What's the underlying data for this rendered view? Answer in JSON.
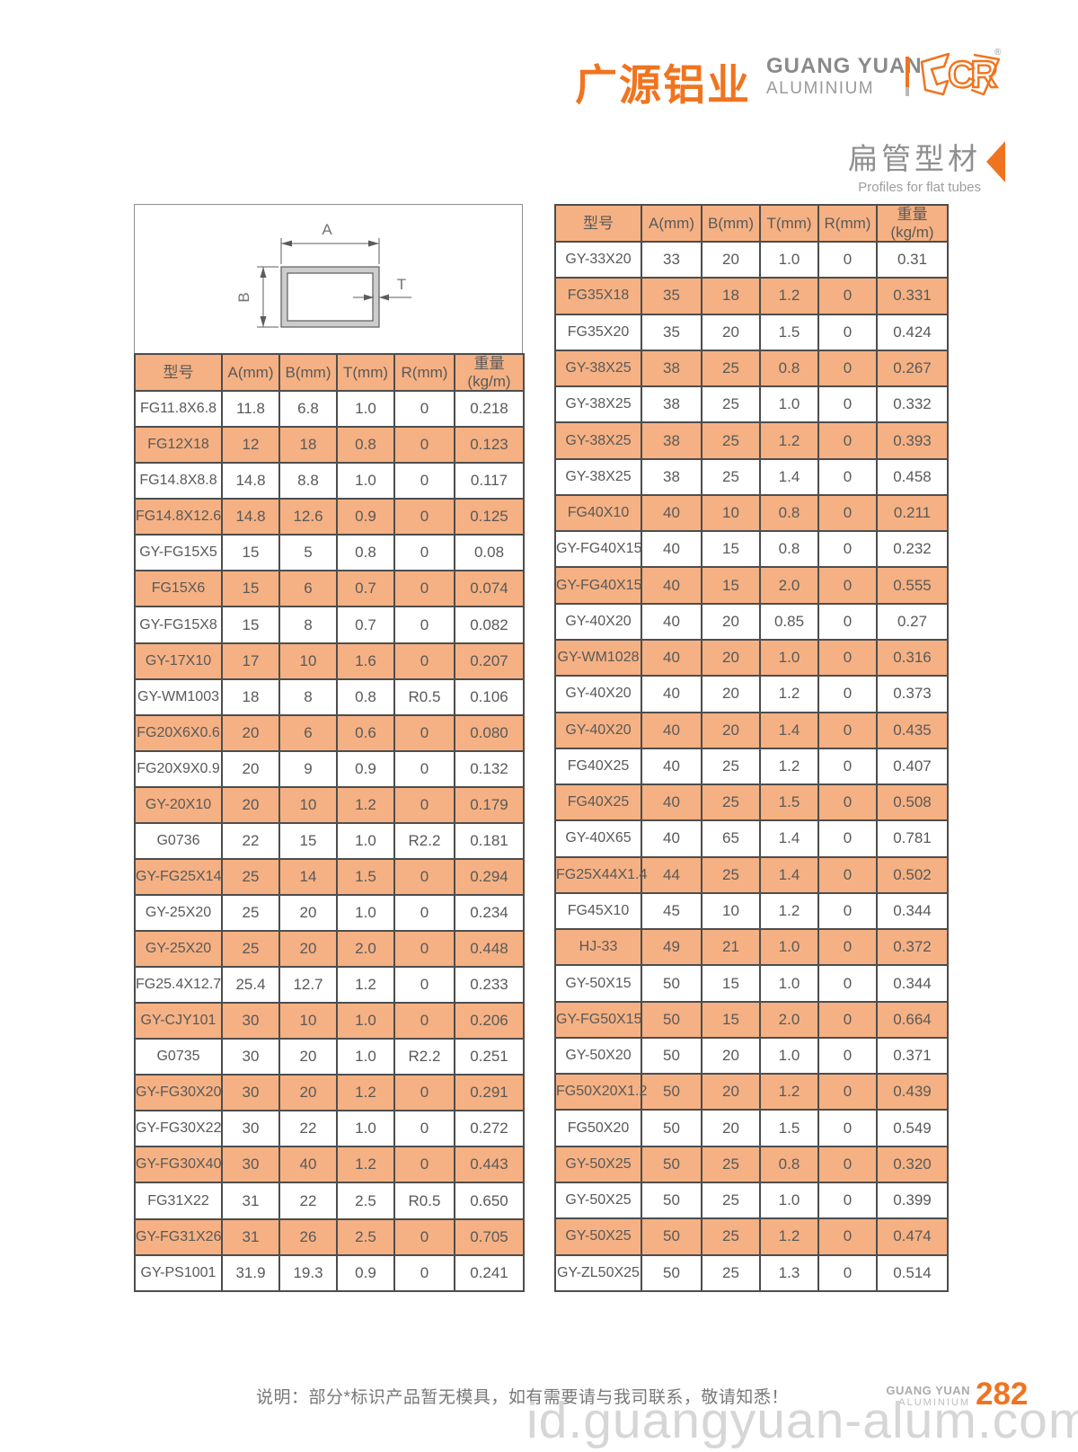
{
  "brand": {
    "logo_cn": "广源铝业",
    "logo_en_line1": "GUANG YUAN",
    "logo_en_line2": "ALUMINIUM",
    "logo_mark_letters": "CR",
    "registered_mark": "®"
  },
  "section": {
    "title_cn": "扁管型材",
    "title_en": "Profiles for flat tubes"
  },
  "diagram": {
    "label_a": "A",
    "label_b": "B",
    "label_t": "T"
  },
  "columns": [
    "型号",
    "A(mm)",
    "B(mm)",
    "T(mm)",
    "R(mm)",
    "重量\n(kg/m)"
  ],
  "tables": {
    "left": {
      "rows": [
        [
          "FG11.8X6.8",
          "11.8",
          "6.8",
          "1.0",
          "0",
          "0.218"
        ],
        [
          "FG12X18",
          "12",
          "18",
          "0.8",
          "0",
          "0.123"
        ],
        [
          "FG14.8X8.8",
          "14.8",
          "8.8",
          "1.0",
          "0",
          "0.117"
        ],
        [
          "FG14.8X12.6",
          "14.8",
          "12.6",
          "0.9",
          "0",
          "0.125"
        ],
        [
          "GY-FG15X5",
          "15",
          "5",
          "0.8",
          "0",
          "0.08"
        ],
        [
          "FG15X6",
          "15",
          "6",
          "0.7",
          "0",
          "0.074"
        ],
        [
          "GY-FG15X8",
          "15",
          "8",
          "0.7",
          "0",
          "0.082"
        ],
        [
          "GY-17X10",
          "17",
          "10",
          "1.6",
          "0",
          "0.207"
        ],
        [
          "GY-WM1003",
          "18",
          "8",
          "0.8",
          "R0.5",
          "0.106"
        ],
        [
          "FG20X6X0.6",
          "20",
          "6",
          "0.6",
          "0",
          "0.080"
        ],
        [
          "FG20X9X0.9",
          "20",
          "9",
          "0.9",
          "0",
          "0.132"
        ],
        [
          "GY-20X10",
          "20",
          "10",
          "1.2",
          "0",
          "0.179"
        ],
        [
          "G0736",
          "22",
          "15",
          "1.0",
          "R2.2",
          "0.181"
        ],
        [
          "GY-FG25X14",
          "25",
          "14",
          "1.5",
          "0",
          "0.294"
        ],
        [
          "GY-25X20",
          "25",
          "20",
          "1.0",
          "0",
          "0.234"
        ],
        [
          "GY-25X20",
          "25",
          "20",
          "2.0",
          "0",
          "0.448"
        ],
        [
          "FG25.4X12.7",
          "25.4",
          "12.7",
          "1.2",
          "0",
          "0.233"
        ],
        [
          "GY-CJY101",
          "30",
          "10",
          "1.0",
          "0",
          "0.206"
        ],
        [
          "G0735",
          "30",
          "20",
          "1.0",
          "R2.2",
          "0.251"
        ],
        [
          "GY-FG30X20",
          "30",
          "20",
          "1.2",
          "0",
          "0.291"
        ],
        [
          "GY-FG30X22",
          "30",
          "22",
          "1.0",
          "0",
          "0.272"
        ],
        [
          "GY-FG30X40",
          "30",
          "40",
          "1.2",
          "0",
          "0.443"
        ],
        [
          "FG31X22",
          "31",
          "22",
          "2.5",
          "R0.5",
          "0.650"
        ],
        [
          "GY-FG31X26",
          "31",
          "26",
          "2.5",
          "0",
          "0.705"
        ],
        [
          "GY-PS1001",
          "31.9",
          "19.3",
          "0.9",
          "0",
          "0.241"
        ]
      ]
    },
    "right": {
      "rows": [
        [
          "GY-33X20",
          "33",
          "20",
          "1.0",
          "0",
          "0.31"
        ],
        [
          "FG35X18",
          "35",
          "18",
          "1.2",
          "0",
          "0.331"
        ],
        [
          "FG35X20",
          "35",
          "20",
          "1.5",
          "0",
          "0.424"
        ],
        [
          "GY-38X25",
          "38",
          "25",
          "0.8",
          "0",
          "0.267"
        ],
        [
          "GY-38X25",
          "38",
          "25",
          "1.0",
          "0",
          "0.332"
        ],
        [
          "GY-38X25",
          "38",
          "25",
          "1.2",
          "0",
          "0.393"
        ],
        [
          "GY-38X25",
          "38",
          "25",
          "1.4",
          "0",
          "0.458"
        ],
        [
          "FG40X10",
          "40",
          "10",
          "0.8",
          "0",
          "0.211"
        ],
        [
          "GY-FG40X15",
          "40",
          "15",
          "0.8",
          "0",
          "0.232"
        ],
        [
          "GY-FG40X15",
          "40",
          "15",
          "2.0",
          "0",
          "0.555"
        ],
        [
          "GY-40X20",
          "40",
          "20",
          "0.85",
          "0",
          "0.27"
        ],
        [
          "GY-WM1028",
          "40",
          "20",
          "1.0",
          "0",
          "0.316"
        ],
        [
          "GY-40X20",
          "40",
          "20",
          "1.2",
          "0",
          "0.373"
        ],
        [
          "GY-40X20",
          "40",
          "20",
          "1.4",
          "0",
          "0.435"
        ],
        [
          "FG40X25",
          "40",
          "25",
          "1.2",
          "0",
          "0.407"
        ],
        [
          "FG40X25",
          "40",
          "25",
          "1.5",
          "0",
          "0.508"
        ],
        [
          "GY-40X65",
          "40",
          "65",
          "1.4",
          "0",
          "0.781"
        ],
        [
          "FG25X44X1.4",
          "44",
          "25",
          "1.4",
          "0",
          "0.502"
        ],
        [
          "FG45X10",
          "45",
          "10",
          "1.2",
          "0",
          "0.344"
        ],
        [
          "HJ-33",
          "49",
          "21",
          "1.0",
          "0",
          "0.372"
        ],
        [
          "GY-50X15",
          "50",
          "15",
          "1.0",
          "0",
          "0.344"
        ],
        [
          "GY-FG50X15",
          "50",
          "15",
          "2.0",
          "0",
          "0.664"
        ],
        [
          "GY-50X20",
          "50",
          "20",
          "1.0",
          "0",
          "0.371"
        ],
        [
          "FG50X20X1.2",
          "50",
          "20",
          "1.2",
          "0",
          "0.439"
        ],
        [
          "FG50X20",
          "50",
          "20",
          "1.5",
          "0",
          "0.549"
        ],
        [
          "GY-50X25",
          "50",
          "25",
          "0.8",
          "0",
          "0.320"
        ],
        [
          "GY-50X25",
          "50",
          "25",
          "1.0",
          "0",
          "0.399"
        ],
        [
          "GY-50X25",
          "50",
          "25",
          "1.2",
          "0",
          "0.474"
        ],
        [
          "GY-ZL50X25",
          "50",
          "25",
          "1.3",
          "0",
          "0.514"
        ]
      ]
    }
  },
  "footer": {
    "note": "说明：部分*标识产品暂无模具，如有需要请与我司联系，敬请知悉！",
    "brand_line1": "GUANG YUAN",
    "brand_line2": "ALUMINIUM",
    "page_number": "282",
    "watermark": "id.guangyuan-alum.com"
  },
  "colors": {
    "accent": "#f07420",
    "row_orange": "#f5b183",
    "cell_border": "#4d4d4d",
    "cell_text": "#595959",
    "watermark_gray": "#d6d6d6"
  }
}
